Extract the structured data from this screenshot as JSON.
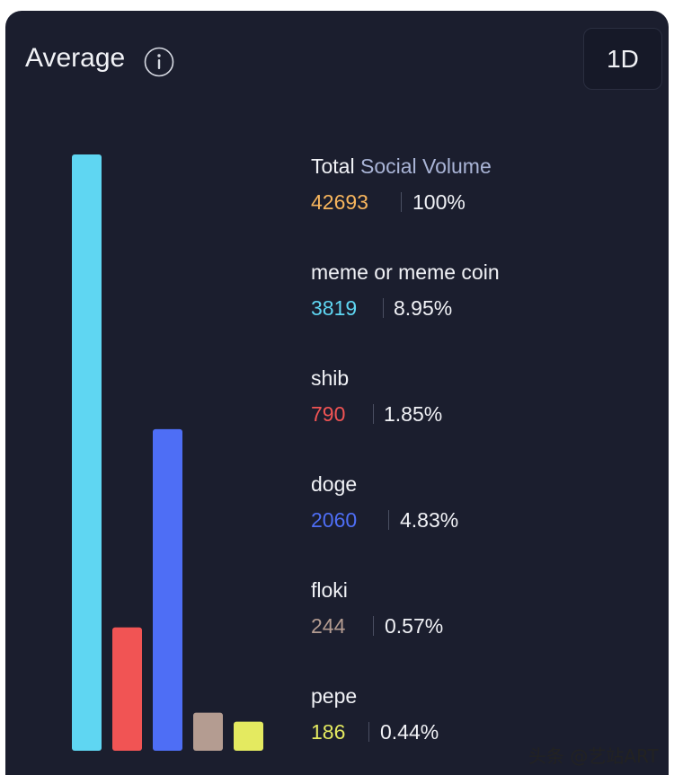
{
  "header": {
    "title": "Average",
    "info_icon": "info-icon",
    "period": "1D"
  },
  "legend": [
    {
      "label_prefix": "Total",
      "label_accent": "Social Volume",
      "value": "42693",
      "percent": "100%",
      "color": "#f7b55d"
    },
    {
      "label": "meme or meme coin",
      "value": "3819",
      "percent": "8.95%",
      "color": "#5fd6f2"
    },
    {
      "label": "shib",
      "value": "790",
      "percent": "1.85%",
      "color": "#f15454"
    },
    {
      "label": "doge",
      "value": "2060",
      "percent": "4.83%",
      "color": "#4e6ef5"
    },
    {
      "label": "floki",
      "value": "244",
      "percent": "0.57%",
      "color": "#b49c91"
    },
    {
      "label": "pepe",
      "value": "186",
      "percent": "0.44%",
      "color": "#e4ea60"
    }
  ],
  "chart_data": {
    "type": "bar",
    "categories": [
      "meme or meme coin",
      "shib",
      "doge",
      "floki",
      "pepe"
    ],
    "values": [
      3819,
      790,
      2060,
      244,
      186
    ],
    "colors": [
      "#5fd6f2",
      "#f15454",
      "#4e6ef5",
      "#b49c91",
      "#e4ea60"
    ],
    "ylim": [
      0,
      3819
    ]
  },
  "watermark": "头条 @艺站ART"
}
